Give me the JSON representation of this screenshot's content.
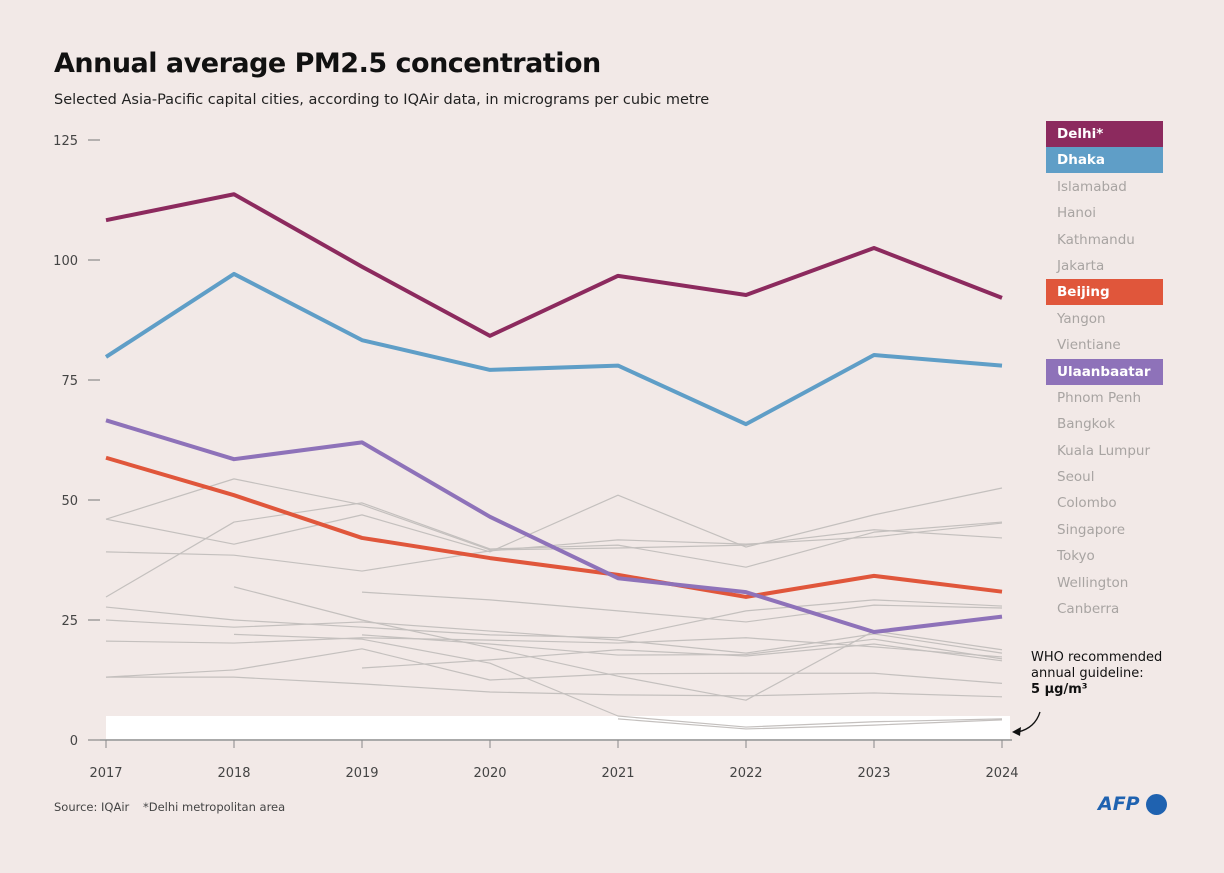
{
  "chart_data": {
    "type": "line",
    "title": "Annual average PM2.5 concentration",
    "subtitle": "Selected Asia-Pacific capital cities, according to IQAir data, in micrograms per cubic metre",
    "x": [
      2017,
      2018,
      2019,
      2020,
      2021,
      2022,
      2023,
      2024
    ],
    "y_ticks": [
      0,
      25,
      50,
      75,
      100,
      125
    ],
    "ylim": [
      0,
      125
    ],
    "grid": false,
    "legend_placement": "right",
    "series": [
      {
        "name": "Delhi*",
        "color": "#8c2a5e",
        "highlight": true,
        "values": [
          108.3,
          113.7,
          98.6,
          84.2,
          96.7,
          92.7,
          102.5,
          92.1
        ]
      },
      {
        "name": "Dhaka",
        "color": "#5f9ec7",
        "highlight": true,
        "values": [
          79.8,
          97.1,
          83.3,
          77.1,
          78.0,
          65.8,
          80.2,
          78.0
        ]
      },
      {
        "name": "Beijing",
        "color": "#e0563b",
        "highlight": true,
        "values": [
          58.8,
          51.0,
          42.1,
          37.9,
          34.4,
          29.8,
          34.2,
          30.9
        ]
      },
      {
        "name": "Ulaanbaatar",
        "color": "#8e72b9",
        "highlight": true,
        "values": [
          66.6,
          58.5,
          62.0,
          46.5,
          33.7,
          30.8,
          22.5,
          25.7
        ]
      },
      {
        "values": [
          46.0,
          54.4,
          49.0,
          39.6,
          40.0,
          40.6,
          43.8,
          42.1
        ]
      },
      {
        "values": [
          46.0,
          40.8,
          46.9,
          39.2,
          51.0,
          40.2,
          46.9,
          52.5
        ]
      },
      {
        "values": [
          29.8,
          45.4,
          49.4,
          39.8,
          40.6,
          36.0,
          43.3,
          45.4
        ]
      },
      {
        "values": [
          39.2,
          38.5,
          35.2,
          39.4,
          41.7,
          40.8,
          42.3,
          45.2
        ]
      },
      {
        "values": [
          null,
          31.9,
          25.0,
          19.2,
          13.3,
          8.3,
          22.7,
          18.8
        ]
      },
      {
        "values": [
          null,
          null,
          30.8,
          29.2,
          26.9,
          24.6,
          28.1,
          27.5
        ]
      },
      {
        "values": [
          27.7,
          25.0,
          23.5,
          21.9,
          21.3,
          26.9,
          29.2,
          27.9
        ]
      },
      {
        "values": [
          25.0,
          23.5,
          24.6,
          22.7,
          20.8,
          18.1,
          22.1,
          18.1
        ]
      },
      {
        "values": [
          20.6,
          20.2,
          21.3,
          20.8,
          20.2,
          21.3,
          19.4,
          17.3
        ]
      },
      {
        "values": [
          13.1,
          14.6,
          19.0,
          12.5,
          13.8,
          13.9,
          13.9,
          11.8
        ]
      },
      {
        "values": [
          13.1,
          13.1,
          11.7,
          10.0,
          9.4,
          9.2,
          9.8,
          9.0
        ]
      },
      {
        "values": [
          null,
          null,
          15.0,
          16.7,
          18.8,
          17.5,
          20.0,
          16.5
        ]
      },
      {
        "values": [
          null,
          null,
          21.9,
          20.0,
          17.7,
          17.8,
          21.0,
          16.9
        ]
      },
      {
        "values": [
          null,
          22.0,
          21.0,
          16.0,
          5.0,
          2.7,
          3.8,
          4.4
        ]
      },
      {
        "values": [
          null,
          null,
          null,
          null,
          4.4,
          2.3,
          3.1,
          4.2
        ]
      }
    ],
    "guideline": {
      "value": 5,
      "label": "WHO recommended annual guideline:",
      "value_label": "5 µg/m³"
    }
  },
  "legend": [
    {
      "label": "Delhi*",
      "color": "#8c2a5e"
    },
    {
      "label": "Dhaka",
      "color": "#5f9ec7"
    },
    {
      "label": "Islamabad"
    },
    {
      "label": "Hanoi"
    },
    {
      "label": "Kathmandu"
    },
    {
      "label": "Jakarta"
    },
    {
      "label": "Beijing",
      "color": "#e0563b"
    },
    {
      "label": "Yangon"
    },
    {
      "label": "Vientiane"
    },
    {
      "label": "Ulaanbaatar",
      "color": "#8e72b9"
    },
    {
      "label": "Phnom Penh"
    },
    {
      "label": "Bangkok"
    },
    {
      "label": "Kuala Lumpur"
    },
    {
      "label": "Seoul"
    },
    {
      "label": "Colombo"
    },
    {
      "label": "Singapore"
    },
    {
      "label": "Tokyo"
    },
    {
      "label": "Wellington"
    },
    {
      "label": "Canberra"
    }
  ],
  "who": {
    "line1": "WHO recommended",
    "line2": "annual guideline:",
    "line3": "5 µg/m³"
  },
  "source": "Source: IQAir",
  "footnote": "*Delhi metropolitan area",
  "logo": "AFP"
}
